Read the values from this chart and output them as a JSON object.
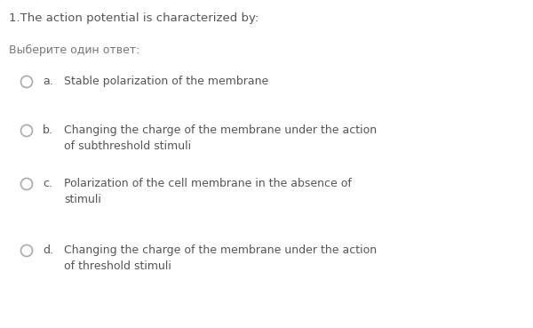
{
  "background_color": "#ffffff",
  "title": "1.The action potential is characterized by:",
  "subtitle": "Выберите один ответ:",
  "options": [
    {
      "letter": "a.",
      "line1": "Stable polarization of the membrane",
      "line2": null
    },
    {
      "letter": "b.",
      "line1": "Changing the charge of the membrane under the action",
      "line2": "of subthreshold stimuli"
    },
    {
      "letter": "c.",
      "line1": "Polarization of the cell membrane in the absence of",
      "line2": "stimuli"
    },
    {
      "letter": "d.",
      "line1": "Changing the charge of the membrane under the action",
      "line2": "of threshold stimuli"
    }
  ],
  "title_fontsize": 9.5,
  "subtitle_fontsize": 9.0,
  "option_fontsize": 9.0,
  "title_color": "#555555",
  "subtitle_color": "#777777",
  "option_color": "#555555",
  "circle_color": "#aaaaaa",
  "fig_width": 6.0,
  "fig_height": 3.69
}
